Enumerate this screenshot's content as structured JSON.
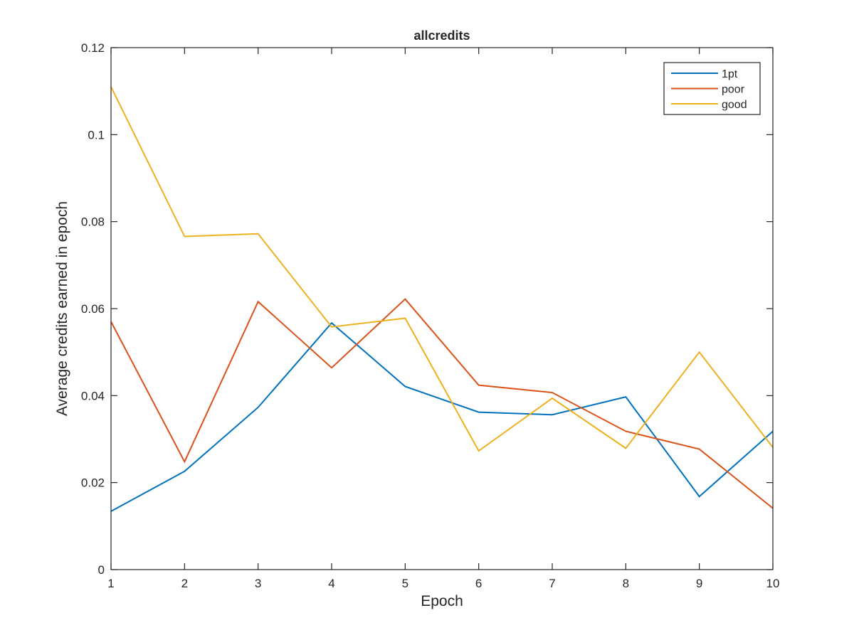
{
  "chart_data": {
    "type": "line",
    "title": "allcredits",
    "xlabel": "Epoch",
    "ylabel": "Average credits earned in epoch",
    "xlim": [
      1,
      10
    ],
    "ylim": [
      0,
      0.12
    ],
    "x": [
      1,
      2,
      3,
      4,
      5,
      6,
      7,
      8,
      9,
      10
    ],
    "xticks": [
      "1",
      "2",
      "3",
      "4",
      "5",
      "6",
      "7",
      "8",
      "9",
      "10"
    ],
    "yticks": [
      {
        "value": 0,
        "label": "0"
      },
      {
        "value": 0.02,
        "label": "0.02"
      },
      {
        "value": 0.04,
        "label": "0.04"
      },
      {
        "value": 0.06,
        "label": "0.06"
      },
      {
        "value": 0.08,
        "label": "0.08"
      },
      {
        "value": 0.1,
        "label": "0.1"
      },
      {
        "value": 0.12,
        "label": "0.12"
      }
    ],
    "grid": false,
    "legend_position": "top-right",
    "series": [
      {
        "name": "1pt",
        "color": "#0072BD",
        "values": [
          0.0134,
          0.0226,
          0.0373,
          0.0567,
          0.0421,
          0.0362,
          0.0356,
          0.0397,
          0.0168,
          0.0318
        ]
      },
      {
        "name": "poor",
        "color": "#D95319",
        "values": [
          0.057,
          0.0248,
          0.0616,
          0.0464,
          0.0622,
          0.0424,
          0.0407,
          0.0318,
          0.0277,
          0.0141
        ]
      },
      {
        "name": "good",
        "color": "#EDB120",
        "values": [
          0.111,
          0.0766,
          0.0772,
          0.0558,
          0.0578,
          0.0273,
          0.0394,
          0.0279,
          0.05,
          0.0281
        ]
      }
    ]
  }
}
